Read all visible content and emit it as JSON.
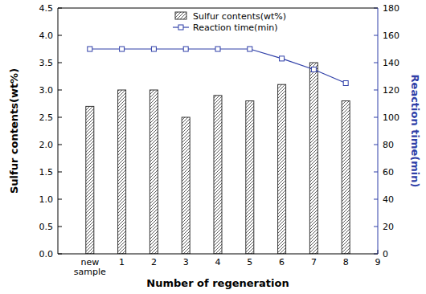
{
  "chart_data": {
    "type": "bar",
    "x_label": "Number of regeneration",
    "y_label": "Sulfur contents(wt%)",
    "y2_label": "Reaction time(min)",
    "categories": [
      "new sample",
      "1",
      "2",
      "3",
      "4",
      "5",
      "6",
      "7",
      "8",
      "9"
    ],
    "series": [
      {
        "name": "Sulfur contents(wt%)",
        "type": "bar",
        "color": "#333333",
        "values": [
          2.7,
          3.0,
          3.0,
          2.5,
          2.9,
          2.8,
          3.1,
          3.5,
          2.8,
          null
        ]
      },
      {
        "name": "Reaction time(min)",
        "type": "line",
        "axis": "y2",
        "color": "#2f3fa8",
        "marker": "square",
        "values": [
          150,
          150,
          150,
          150,
          150,
          150,
          143,
          135,
          125,
          null
        ]
      }
    ],
    "ylim": [
      0,
      4.5
    ],
    "yticks": [
      {
        "value": 0,
        "label": "0.0"
      },
      0.5,
      {
        "value": 1,
        "label": "1.0"
      },
      1.5,
      {
        "value": 2,
        "label": "2.0"
      },
      2.5,
      {
        "value": 3,
        "label": "3.0"
      },
      3.5,
      {
        "value": 4,
        "label": "4.0"
      },
      4.5
    ],
    "y2lim": [
      0,
      180
    ],
    "y2ticks": [
      0,
      20,
      40,
      60,
      80,
      100,
      120,
      140,
      160,
      180
    ],
    "legend": "top"
  }
}
